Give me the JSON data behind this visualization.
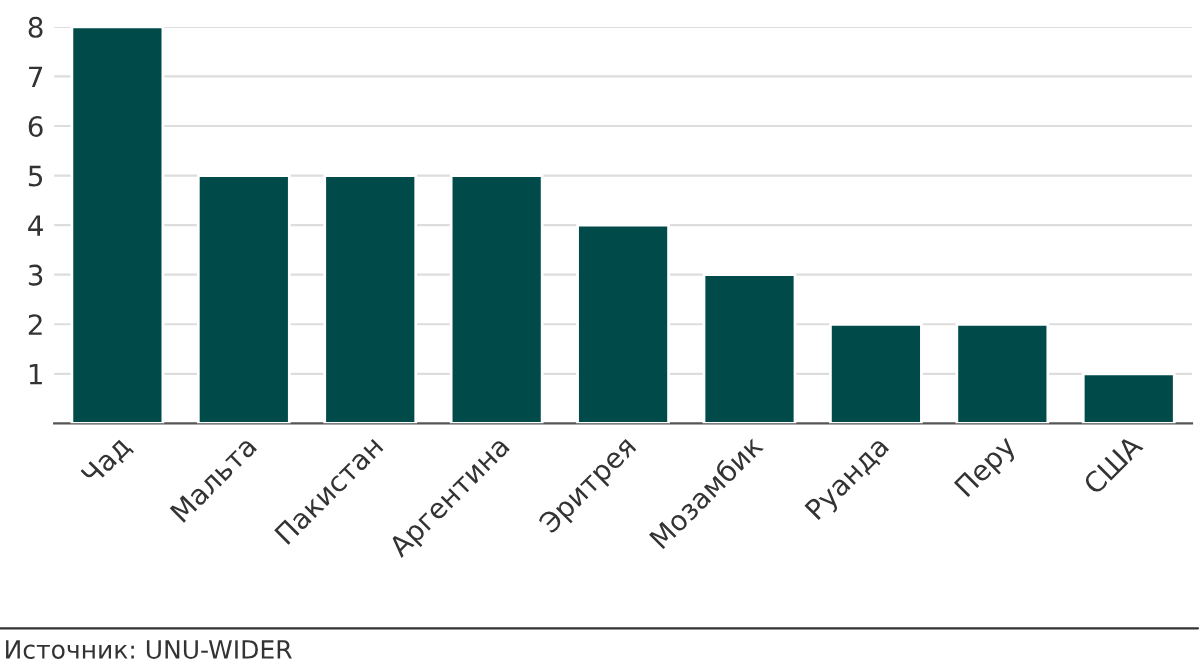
{
  "chart_data": {
    "type": "bar",
    "categories": [
      "Чад",
      "Мальта",
      "Пакистан",
      "Аргентина",
      "Эритрея",
      "Мозамбик",
      "Руанда",
      "Перу",
      "США"
    ],
    "values": [
      8,
      5,
      5,
      5,
      4,
      3,
      2,
      2,
      1
    ],
    "color": "#004b4a",
    "ylim": [
      0,
      8
    ],
    "yticks": [
      1,
      2,
      3,
      4,
      5,
      6,
      7,
      8
    ],
    "grid": "y",
    "legend": false,
    "annotations": [
      "Источник: UNU-WIDER"
    ]
  }
}
